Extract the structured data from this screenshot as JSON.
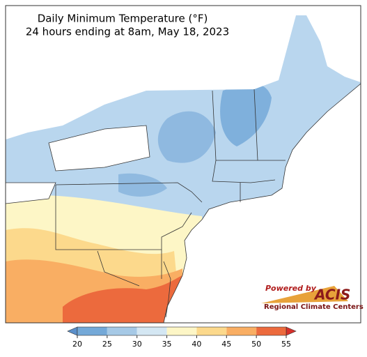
{
  "title": [
    "Daily Minimum Temperature (°F)",
    "24 hours ending at 8am, May 18, 2023"
  ],
  "colorbar": {
    "lim": [
      20,
      55
    ],
    "ticks": [
      20,
      25,
      30,
      35,
      40,
      45,
      50,
      55
    ],
    "colors": [
      "#74a9d8",
      "#a6c9e6",
      "#d4e7f3",
      "#fdf6c6",
      "#fcd98c",
      "#f9ae63",
      "#ec6a3d"
    ],
    "under_color": "#5a8fca",
    "over_color": "#d7302a"
  },
  "logo": {
    "powered": "Powered by",
    "name": "ACIS",
    "subtitle": "Regional Climate Centers"
  }
}
